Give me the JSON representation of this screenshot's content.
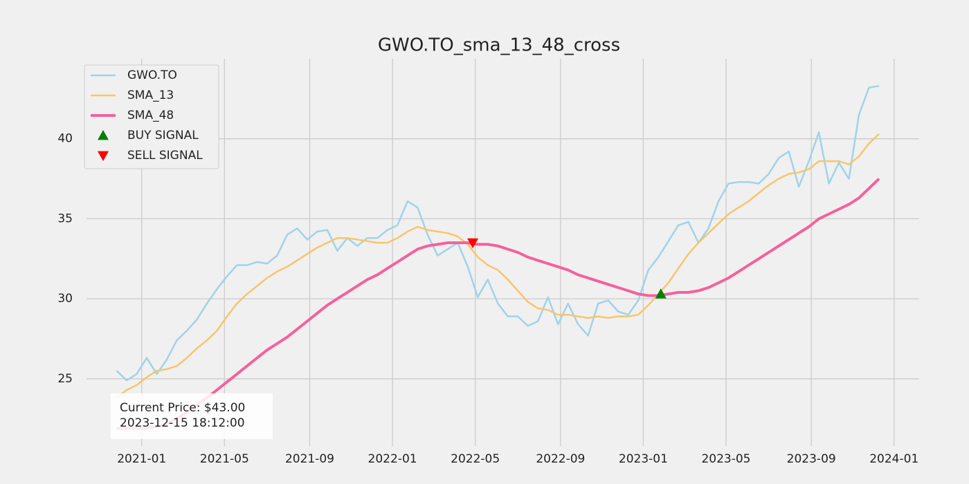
{
  "chart_data": {
    "type": "line",
    "title": "GWO.TO_sma_13_48_cross",
    "x": [
      2020.9,
      2020.94,
      2020.98,
      2021.02,
      2021.06,
      2021.1,
      2021.14,
      2021.18,
      2021.22,
      2021.26,
      2021.3,
      2021.34,
      2021.38,
      2021.42,
      2021.46,
      2021.5,
      2021.54,
      2021.58,
      2021.62,
      2021.66,
      2021.7,
      2021.74,
      2021.78,
      2021.82,
      2021.86,
      2021.9,
      2021.94,
      2021.98,
      2022.02,
      2022.06,
      2022.1,
      2022.14,
      2022.18,
      2022.22,
      2022.26,
      2022.3,
      2022.34,
      2022.38,
      2022.42,
      2022.46,
      2022.5,
      2022.54,
      2022.58,
      2022.62,
      2022.66,
      2022.7,
      2022.74,
      2022.78,
      2022.82,
      2022.86,
      2022.9,
      2022.94,
      2022.98,
      2023.02,
      2023.06,
      2023.1,
      2023.14,
      2023.18,
      2023.22,
      2023.26,
      2023.3,
      2023.34,
      2023.38,
      2023.42,
      2023.46,
      2023.5,
      2023.54,
      2023.58,
      2023.62,
      2023.66,
      2023.7,
      2023.74,
      2023.78,
      2023.82,
      2023.86,
      2023.9,
      2023.94
    ],
    "series": [
      {
        "name": "GWO.TO",
        "color": "#9fd3ea",
        "width": 2.5,
        "values": [
          25.5,
          24.9,
          25.3,
          26.3,
          25.3,
          26.2,
          27.4,
          28.0,
          28.7,
          29.7,
          30.6,
          31.4,
          32.1,
          32.1,
          32.3,
          32.2,
          32.7,
          34.0,
          34.4,
          33.7,
          34.2,
          34.3,
          33.0,
          33.8,
          33.3,
          33.8,
          33.8,
          34.3,
          34.6,
          36.1,
          35.7,
          34.0,
          32.7,
          33.1,
          33.5,
          32.0,
          30.1,
          31.2,
          29.7,
          28.9,
          28.9,
          28.3,
          28.6,
          30.1,
          28.4,
          29.7,
          28.4,
          27.7,
          29.7,
          29.9,
          29.2,
          29.0,
          29.9,
          31.8,
          32.6,
          33.6,
          34.6,
          34.8,
          33.5,
          34.4,
          36.1,
          37.2,
          37.3,
          37.3,
          37.2,
          37.8,
          38.8,
          39.2,
          37.0,
          38.6,
          40.4,
          37.2,
          38.5,
          37.5,
          41.5,
          43.2,
          43.3
        ]
      },
      {
        "name": "SMA_13",
        "color": "#f9c46a",
        "width": 2.5,
        "values": [
          23.8,
          24.3,
          24.6,
          25.1,
          25.5,
          25.6,
          25.8,
          26.3,
          26.9,
          27.4,
          28.0,
          28.9,
          29.7,
          30.3,
          30.8,
          31.3,
          31.7,
          32.0,
          32.4,
          32.8,
          33.2,
          33.5,
          33.8,
          33.8,
          33.7,
          33.6,
          33.5,
          33.5,
          33.8,
          34.2,
          34.5,
          34.3,
          34.2,
          34.1,
          33.9,
          33.4,
          32.6,
          32.1,
          31.8,
          31.2,
          30.5,
          29.8,
          29.4,
          29.3,
          29.0,
          29.0,
          28.9,
          28.8,
          28.9,
          28.8,
          28.9,
          28.9,
          29.0,
          29.6,
          30.3,
          31.0,
          31.9,
          32.8,
          33.5,
          34.1,
          34.7,
          35.3,
          35.7,
          36.1,
          36.6,
          37.1,
          37.5,
          37.8,
          37.9,
          38.1,
          38.6,
          38.6,
          38.6,
          38.4,
          38.9,
          39.7,
          40.3
        ]
      },
      {
        "name": "SMA_48",
        "color": "#f5609d",
        "width": 4,
        "values": [
          21.9,
          21.9,
          21.9,
          21.9,
          22.0,
          22.2,
          22.5,
          22.9,
          23.4,
          23.8,
          24.3,
          24.8,
          25.3,
          25.8,
          26.3,
          26.8,
          27.2,
          27.6,
          28.1,
          28.6,
          29.1,
          29.6,
          30.0,
          30.4,
          30.8,
          31.2,
          31.5,
          31.9,
          32.3,
          32.7,
          33.1,
          33.3,
          33.4,
          33.5,
          33.5,
          33.5,
          33.4,
          33.4,
          33.3,
          33.1,
          32.9,
          32.6,
          32.4,
          32.2,
          32.0,
          31.8,
          31.5,
          31.3,
          31.1,
          30.9,
          30.7,
          30.5,
          30.3,
          30.2,
          30.2,
          30.3,
          30.4,
          30.4,
          30.5,
          30.7,
          31.0,
          31.3,
          31.7,
          32.1,
          32.5,
          32.9,
          33.3,
          33.7,
          34.1,
          34.5,
          35.0,
          35.3,
          35.6,
          35.9,
          36.3,
          36.9,
          37.5
        ]
      },
      {
        "name": "BUY SIGNAL",
        "color": "#008000",
        "marker": "triangle-up",
        "x": [
          2023.07
        ],
        "values": [
          30.3
        ]
      },
      {
        "name": "SELL SIGNAL",
        "color": "#ff0000",
        "marker": "triangle-down",
        "x": [
          2022.32
        ],
        "values": [
          33.5
        ]
      }
    ],
    "xlim": [
      2020.78,
      2024.1
    ],
    "ylim": [
      20.8,
      45
    ],
    "xticks": [
      {
        "value": 2021.0,
        "label": "2021-01"
      },
      {
        "value": 2021.33,
        "label": "2021-05"
      },
      {
        "value": 2021.67,
        "label": "2021-09"
      },
      {
        "value": 2022.0,
        "label": "2022-01"
      },
      {
        "value": 2022.33,
        "label": "2022-05"
      },
      {
        "value": 2022.67,
        "label": "2022-09"
      },
      {
        "value": 2023.0,
        "label": "2023-01"
      },
      {
        "value": 2023.33,
        "label": "2023-05"
      },
      {
        "value": 2023.67,
        "label": "2023-09"
      },
      {
        "value": 2024.0,
        "label": "2024-01"
      }
    ],
    "yticks": [
      25,
      30,
      35,
      40
    ],
    "grid": true,
    "legend": "upper left",
    "annotation": [
      "Current Price: $43.00",
      "2023-12-15 18:12:00"
    ]
  }
}
